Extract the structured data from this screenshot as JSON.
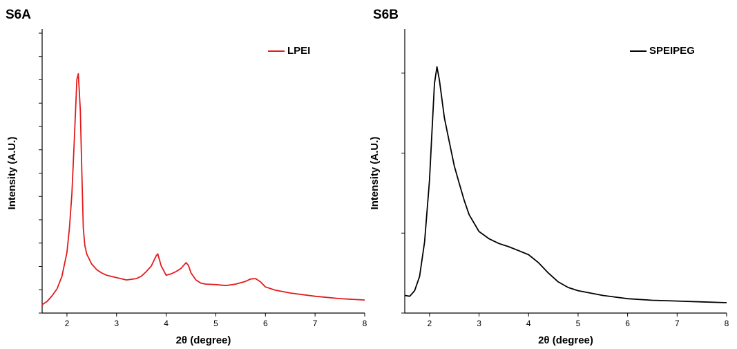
{
  "chart_data": [
    {
      "type": "line",
      "title": "S6A",
      "xlabel": "2θ (degree)",
      "ylabel": "Intensity (A.U.)",
      "xlim": [
        1.5,
        8
      ],
      "xticks": [
        2,
        3,
        4,
        5,
        6,
        7,
        8
      ],
      "ylim": [
        0,
        60
      ],
      "yticks": [
        0,
        5,
        10,
        15,
        20,
        25,
        30,
        35,
        40,
        45,
        50,
        55,
        60
      ],
      "legend": "upper right",
      "x": [
        1.5,
        1.6,
        1.7,
        1.8,
        1.9,
        2.0,
        2.05,
        2.1,
        2.15,
        2.2,
        2.23,
        2.27,
        2.3,
        2.33,
        2.36,
        2.4,
        2.5,
        2.6,
        2.7,
        2.8,
        3.0,
        3.2,
        3.4,
        3.5,
        3.6,
        3.7,
        3.8,
        3.83,
        3.9,
        4.0,
        4.1,
        4.2,
        4.3,
        4.4,
        4.45,
        4.5,
        4.6,
        4.7,
        4.8,
        5.0,
        5.2,
        5.4,
        5.6,
        5.7,
        5.8,
        5.9,
        6.0,
        6.2,
        6.5,
        7.0,
        7.5,
        8.0
      ],
      "series": [
        {
          "name": "LPEI",
          "color": "#e31a1c",
          "values": [
            1.8,
            2.5,
            3.7,
            5.2,
            7.9,
            13.0,
            18.2,
            25.6,
            37.5,
            50.1,
            51.3,
            43.4,
            30.1,
            18.2,
            14.5,
            12.6,
            10.5,
            9.3,
            8.6,
            8.1,
            7.6,
            7.1,
            7.4,
            7.9,
            8.9,
            10.1,
            12.3,
            12.7,
            10.1,
            8.1,
            8.4,
            8.9,
            9.6,
            10.8,
            10.2,
            8.6,
            7.1,
            6.4,
            6.2,
            6.1,
            5.9,
            6.2,
            6.8,
            7.3,
            7.4,
            6.7,
            5.6,
            4.9,
            4.3,
            3.6,
            3.1,
            2.8
          ]
        }
      ]
    },
    {
      "type": "line",
      "title": "S6B",
      "xlabel": "2θ (degree)",
      "ylabel": "Intensity (A.U.)",
      "xlim": [
        1.5,
        8
      ],
      "xticks": [
        2,
        3,
        4,
        5,
        6,
        7,
        8
      ],
      "ylim": [
        0,
        3.5
      ],
      "yticks": [
        0,
        1,
        2,
        3
      ],
      "legend": "upper right",
      "x": [
        1.5,
        1.6,
        1.7,
        1.8,
        1.9,
        2.0,
        2.05,
        2.1,
        2.15,
        2.2,
        2.3,
        2.4,
        2.5,
        2.6,
        2.7,
        2.8,
        3.0,
        3.2,
        3.4,
        3.6,
        3.8,
        4.0,
        4.2,
        4.4,
        4.6,
        4.8,
        5.0,
        5.5,
        6.0,
        6.5,
        7.0,
        7.5,
        8.0
      ],
      "series": [
        {
          "name": "SPEIPEG",
          "color": "#000000",
          "values": [
            0.22,
            0.21,
            0.28,
            0.46,
            0.89,
            1.66,
            2.27,
            2.87,
            3.08,
            2.91,
            2.44,
            2.14,
            1.84,
            1.62,
            1.41,
            1.23,
            1.02,
            0.93,
            0.87,
            0.83,
            0.78,
            0.73,
            0.63,
            0.5,
            0.39,
            0.32,
            0.28,
            0.22,
            0.18,
            0.16,
            0.15,
            0.14,
            0.13
          ]
        }
      ]
    }
  ]
}
